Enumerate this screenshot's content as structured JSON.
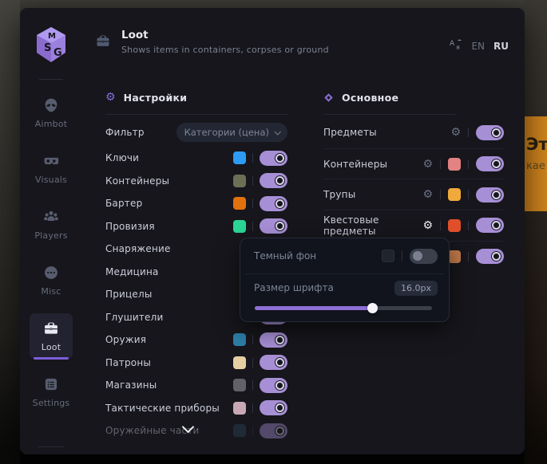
{
  "colors": {
    "accent": "#8a6fd8",
    "toggle_on": "#a78fd6",
    "tooltip_orange": "#d2851c"
  },
  "window": {
    "sidebar": {
      "items": [
        {
          "label": "Aimbot"
        },
        {
          "label": "Visuals"
        },
        {
          "label": "Players"
        },
        {
          "label": "Misc"
        },
        {
          "label": "Loot"
        },
        {
          "label": "Settings"
        }
      ]
    },
    "header": {
      "title": "Loot",
      "subtitle": "Shows items in containers, corpses or ground",
      "lang_en": "EN",
      "lang_ru": "RU"
    },
    "settings_section": {
      "title": "Настройки",
      "filter_label": "Фильтр",
      "filter_value": "Категории (цена)",
      "items": [
        {
          "label": "Ключи",
          "color": "#2e9bf3",
          "enabled": true
        },
        {
          "label": "Контейнеры",
          "color": "#6c6f56",
          "enabled": true
        },
        {
          "label": "Бартер",
          "color": "#e0720e",
          "enabled": true
        },
        {
          "label": "Провизия",
          "color": "#2bd695",
          "enabled": true
        },
        {
          "label": "Снаряжение",
          "color": null,
          "enabled": true
        },
        {
          "label": "Медицина",
          "color": null,
          "enabled": true
        },
        {
          "label": "Прицелы",
          "color": null,
          "enabled": true
        },
        {
          "label": "Глушители",
          "color": null,
          "enabled": true
        },
        {
          "label": "Оружия",
          "color": "#2d7fa8",
          "enabled": true
        },
        {
          "label": "Патроны",
          "color": "#e5cfa2",
          "enabled": true
        },
        {
          "label": "Магазины",
          "color": "#616167",
          "enabled": true
        },
        {
          "label": "Тактические приборы",
          "color": "#c7a8b2",
          "enabled": true
        },
        {
          "label": "Оружейные части",
          "color": "#2a4a5e",
          "enabled": true,
          "faded": true
        }
      ]
    },
    "main_section": {
      "title": "Основное",
      "items": [
        {
          "label": "Предметы",
          "has_gear": true,
          "color": null,
          "enabled": true
        },
        {
          "label": "Контейнеры",
          "has_gear": true,
          "color": "#e38282",
          "enabled": true
        },
        {
          "label": "Трупы",
          "has_gear": true,
          "color": "#f2a93b",
          "enabled": true
        },
        {
          "label": "Квестовые предметы",
          "has_gear": true,
          "gear_active": true,
          "color": "#e2502b",
          "enabled": true
        },
        {
          "label": "",
          "has_gear": false,
          "color": "#c17a4a",
          "enabled": true
        }
      ]
    },
    "popup": {
      "dark_bg_label": "Темный фон",
      "dark_bg_enabled": false,
      "font_size_label": "Размер шрифта",
      "font_size_value": "16.0px",
      "slider_percent": 66
    }
  },
  "background_tooltip": {
    "line1": "Эт",
    "line2": "кае"
  }
}
